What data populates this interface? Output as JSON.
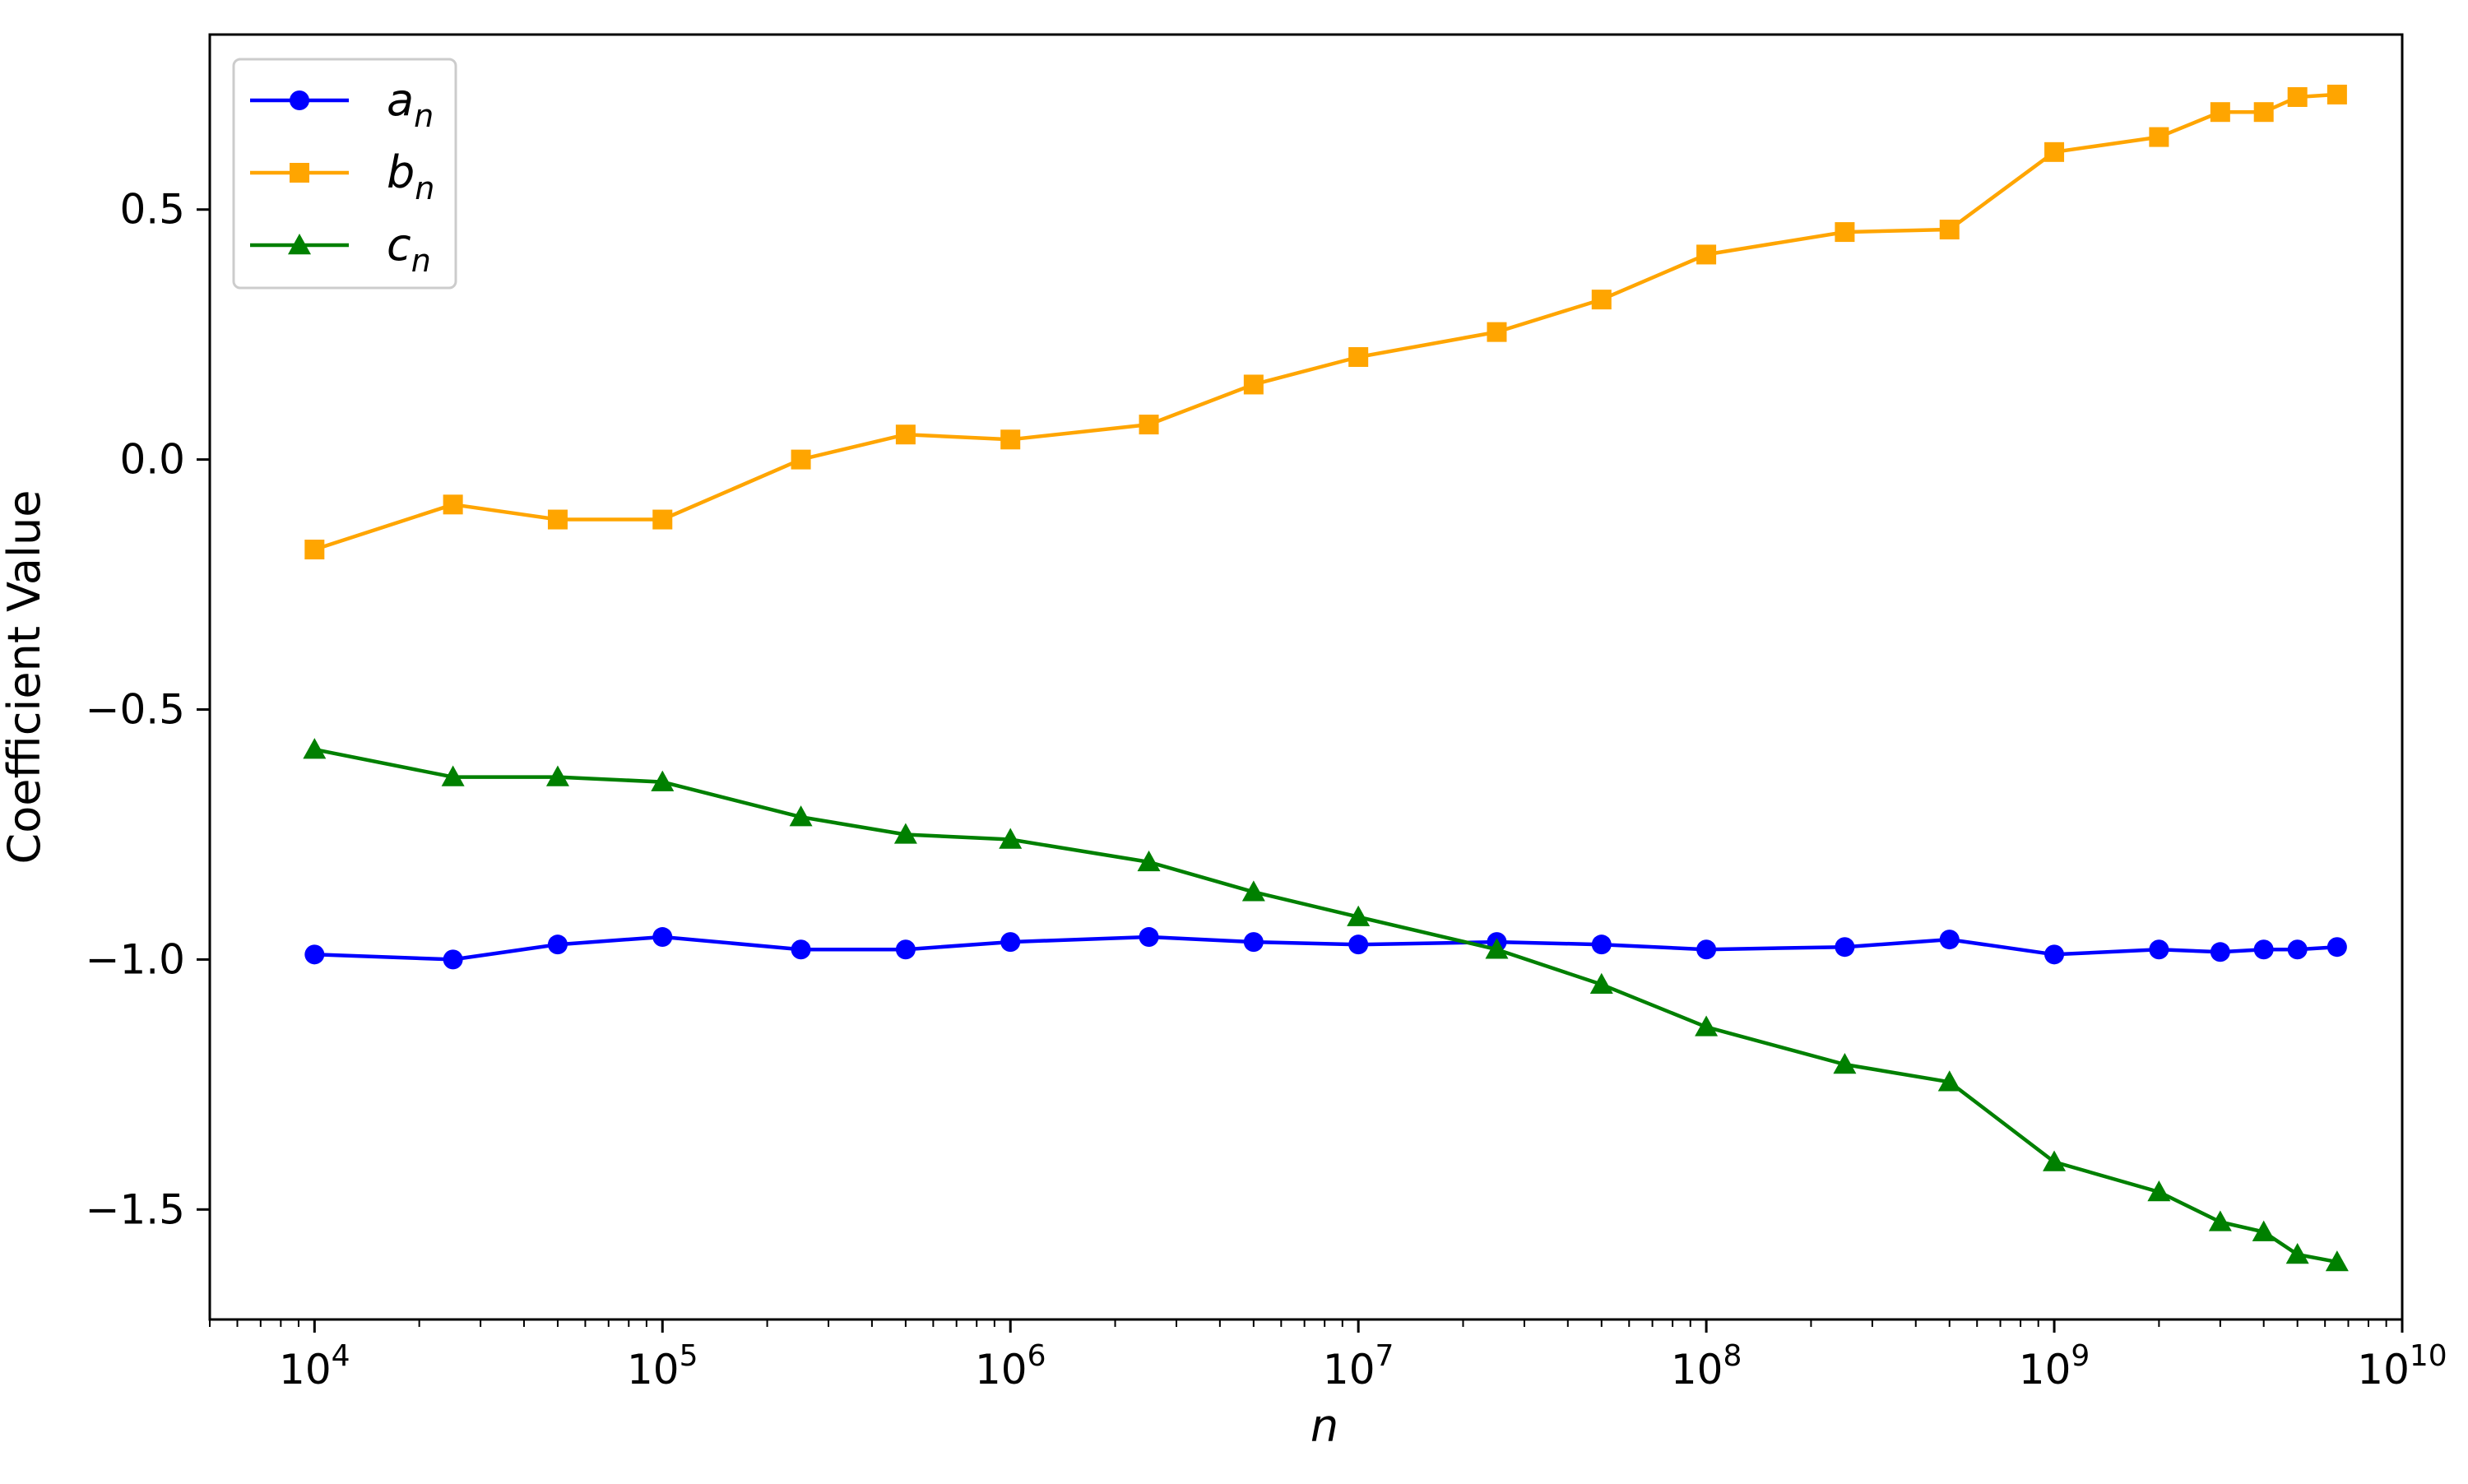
{
  "chart_data": {
    "type": "line",
    "xlabel": "n",
    "ylabel": "Coefficient Value",
    "x_scale": "log",
    "xlim": [
      5000,
      10000000000
    ],
    "ylim": [
      -1.72,
      0.85
    ],
    "x": [
      10000,
      25000,
      50000,
      100000,
      250000,
      500000,
      1000000,
      2500000,
      5000000,
      10000000,
      25000000,
      50000000,
      100000000,
      250000000,
      500000000,
      1000000000,
      2000000000,
      3000000000,
      4000000000,
      5000000000,
      6500000000
    ],
    "x_ticks": [
      {
        "value": 10000,
        "base": "10",
        "exp": "4"
      },
      {
        "value": 100000,
        "base": "10",
        "exp": "5"
      },
      {
        "value": 1000000,
        "base": "10",
        "exp": "6"
      },
      {
        "value": 10000000,
        "base": "10",
        "exp": "7"
      },
      {
        "value": 100000000,
        "base": "10",
        "exp": "8"
      },
      {
        "value": 1000000000,
        "base": "10",
        "exp": "9"
      },
      {
        "value": 10000000000,
        "base": "10",
        "exp": "10"
      }
    ],
    "y_ticks": [
      {
        "value": 0.5,
        "label": "0.5"
      },
      {
        "value": 0.0,
        "label": "0.0"
      },
      {
        "value": -0.5,
        "label": "−0.5"
      },
      {
        "value": -1.0,
        "label": "−1.0"
      },
      {
        "value": -1.5,
        "label": "−1.5"
      }
    ],
    "series": [
      {
        "name": "a_n",
        "legend_base": "a",
        "legend_sub": "n",
        "color": "#0000ff",
        "marker": "circle",
        "values": [
          -0.99,
          -1.0,
          -0.97,
          -0.955,
          -0.98,
          -0.98,
          -0.965,
          -0.955,
          -0.965,
          -0.97,
          -0.965,
          -0.97,
          -0.98,
          -0.975,
          -0.96,
          -0.99,
          -0.98,
          -0.985,
          -0.98,
          -0.98,
          -0.975
        ]
      },
      {
        "name": "b_n",
        "legend_base": "b",
        "legend_sub": "n",
        "color": "#ffa500",
        "marker": "square",
        "values": [
          -0.18,
          -0.09,
          -0.12,
          -0.12,
          0.0,
          0.05,
          0.04,
          0.07,
          0.15,
          0.205,
          0.255,
          0.32,
          0.41,
          0.455,
          0.46,
          0.615,
          0.645,
          0.695,
          0.695,
          0.725,
          0.73
        ]
      },
      {
        "name": "c_n",
        "legend_base": "c",
        "legend_sub": "n",
        "color": "#008000",
        "marker": "triangle",
        "values": [
          -0.58,
          -0.635,
          -0.635,
          -0.645,
          -0.715,
          -0.75,
          -0.76,
          -0.805,
          -0.865,
          -0.915,
          -0.98,
          -1.05,
          -1.135,
          -1.21,
          -1.245,
          -1.405,
          -1.465,
          -1.525,
          -1.545,
          -1.59,
          -1.605
        ]
      }
    ],
    "legend_position": "top-left",
    "grid": false
  }
}
